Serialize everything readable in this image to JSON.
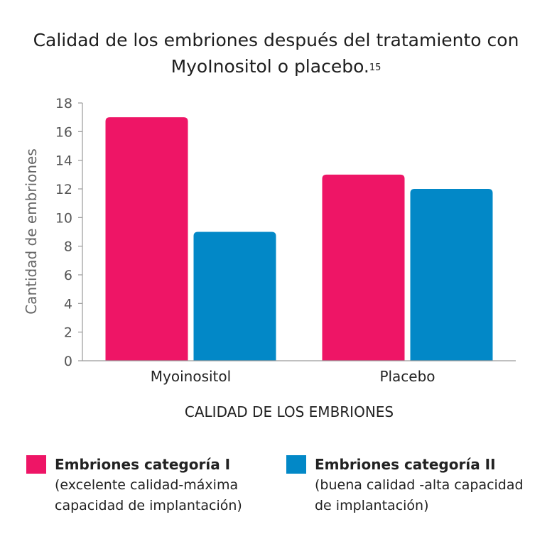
{
  "title": "Calidad de los embriones después del tratamiento con MyoInositol o placebo.",
  "title_ref": "15",
  "chart_data": {
    "type": "bar",
    "categories": [
      "Myoinositol",
      "Placebo"
    ],
    "series": [
      {
        "name": "Embriones categoría I",
        "description": "(excelente calidad-máxima capacidad de implantación)",
        "color": "#EE1566",
        "values": [
          17,
          13
        ]
      },
      {
        "name": "Embriones categoría II",
        "description": "(buena calidad -alta capacidad de implantación)",
        "color": "#0288C7",
        "values": [
          9,
          12
        ]
      }
    ],
    "xlabel": "CALIDAD DE LOS EMBRIONES",
    "ylabel": "Cantidad de embriones",
    "ylim": [
      0,
      18
    ],
    "yticks": [
      0,
      2,
      4,
      6,
      8,
      10,
      12,
      14,
      16,
      18
    ],
    "grid": false,
    "legend_position": "bottom"
  }
}
